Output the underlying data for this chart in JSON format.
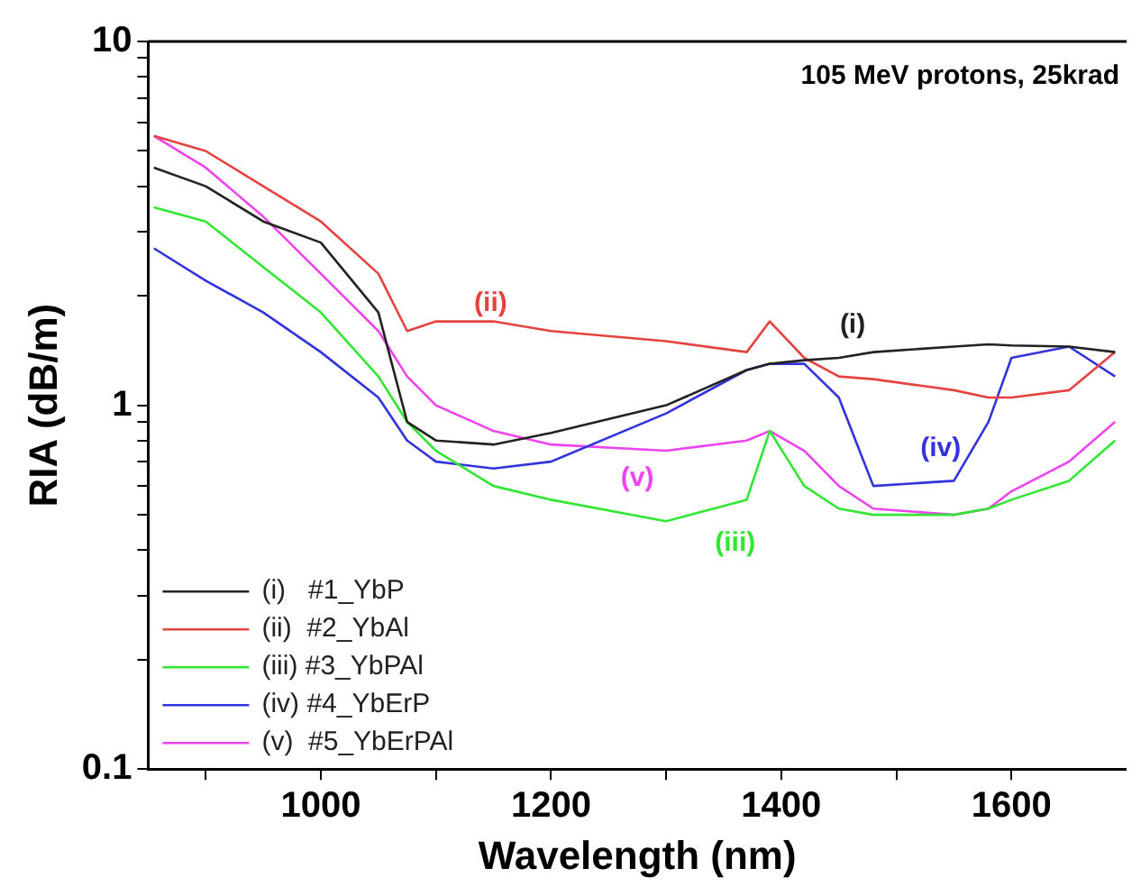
{
  "chart_data": {
    "type": "line",
    "xlabel": "Wavelength (nm)",
    "ylabel": "RIA (dB/m)",
    "log": "y",
    "grid": false,
    "legend": "bottom left",
    "marker": "none",
    "line_style": "solid",
    "xlim": [
      850,
      1700
    ],
    "xticks": [
      {
        "value": 900,
        "label": null
      },
      1000,
      {
        "value": 1100,
        "label": null
      },
      1200,
      {
        "value": 1300,
        "label": null
      },
      1400,
      {
        "value": 1500,
        "label": null
      },
      1600
    ],
    "ylim": [
      0.1,
      10
    ],
    "yticks": [
      0.1,
      {
        "value": 0.2,
        "label": null
      },
      {
        "value": 0.3,
        "label": null
      },
      {
        "value": 0.4,
        "label": null
      },
      {
        "value": 0.5,
        "label": null
      },
      {
        "value": 0.6,
        "label": null
      },
      {
        "value": 0.7,
        "label": null
      },
      {
        "value": 0.8,
        "label": null
      },
      {
        "value": 0.9,
        "label": null
      },
      1,
      {
        "value": 2,
        "label": null
      },
      {
        "value": 3,
        "label": null
      },
      {
        "value": 4,
        "label": null
      },
      {
        "value": 5,
        "label": null
      },
      {
        "value": 6,
        "label": null
      },
      {
        "value": 7,
        "label": null
      },
      {
        "value": 8,
        "label": null
      },
      {
        "value": 9,
        "label": null
      },
      10
    ],
    "x": [
      855,
      900,
      950,
      1000,
      1050,
      1075,
      1100,
      1150,
      1200,
      1300,
      1370,
      1390,
      1420,
      1450,
      1480,
      1550,
      1580,
      1600,
      1650,
      1690
    ],
    "series": [
      {
        "name": "(i)   #1_YbP",
        "color": "#222222",
        "values": [
          4.5,
          4.0,
          3.2,
          2.8,
          1.8,
          0.9,
          0.8,
          0.78,
          0.84,
          1.0,
          1.25,
          1.3,
          1.33,
          1.35,
          1.4,
          1.45,
          1.47,
          1.46,
          1.45,
          1.4
        ]
      },
      {
        "name": "(ii)  #2_YbAl",
        "color": "#e5433f",
        "values": [
          5.5,
          5.0,
          4.0,
          3.2,
          2.3,
          1.6,
          1.7,
          1.7,
          1.6,
          1.5,
          1.4,
          1.7,
          1.35,
          1.2,
          1.18,
          1.1,
          1.05,
          1.05,
          1.1,
          1.4
        ]
      },
      {
        "name": "(iii) #3_YbPAl",
        "color": "#33e633",
        "values": [
          3.5,
          3.2,
          2.4,
          1.8,
          1.2,
          0.9,
          0.75,
          0.6,
          0.55,
          0.48,
          0.55,
          0.85,
          0.6,
          0.52,
          0.5,
          0.5,
          0.52,
          0.55,
          0.62,
          0.8
        ]
      },
      {
        "name": "(iv) #4_YbErP",
        "color": "#3333dd",
        "values": [
          2.7,
          2.2,
          1.8,
          1.4,
          1.05,
          0.8,
          0.7,
          0.67,
          0.7,
          0.95,
          1.25,
          1.3,
          1.3,
          1.05,
          0.6,
          0.62,
          0.9,
          1.35,
          1.45,
          1.2
        ]
      },
      {
        "name": "(v)  #5_YbErPAl",
        "color": "#ee44ee",
        "values": [
          5.5,
          4.5,
          3.3,
          2.3,
          1.6,
          1.2,
          1.0,
          0.85,
          0.78,
          0.75,
          0.8,
          0.85,
          0.75,
          0.6,
          0.52,
          0.5,
          0.52,
          0.58,
          0.7,
          0.9
        ]
      }
    ],
    "annotations": [
      "105 MeV protons, 25krad",
      "(i)",
      "(ii)",
      "(iii)",
      "(iv)",
      "(v)"
    ]
  }
}
